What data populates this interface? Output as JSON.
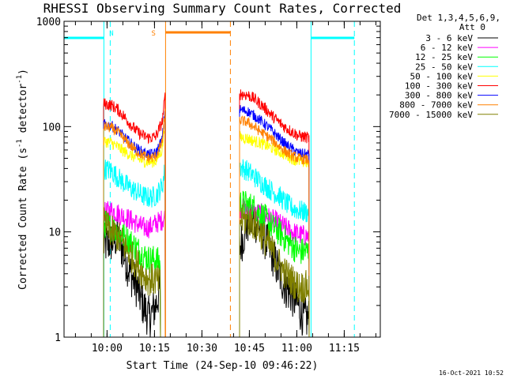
{
  "chart_data": {
    "type": "line",
    "title": "RHESSI Observing Summary Count Rates, Corrected",
    "xlabel": "Start Time (24-Sep-10 09:46:22)",
    "ylabel_parts": [
      "Corrected Count Rate (s",
      "-1",
      " detector",
      "-1",
      ")"
    ],
    "yscale": "log",
    "ylim": [
      1,
      1000
    ],
    "xlim_minutes_after_0946": [
      0,
      100
    ],
    "x_ticks": [
      {
        "label": "10:00",
        "minute": 13.6
      },
      {
        "label": "10:15",
        "minute": 28.6
      },
      {
        "label": "10:30",
        "minute": 43.6
      },
      {
        "label": "10:45",
        "minute": 58.6
      },
      {
        "label": "11:00",
        "minute": 73.6
      },
      {
        "label": "11:15",
        "minute": 88.6
      }
    ],
    "y_ticks": [
      {
        "label": "1",
        "value": 1
      },
      {
        "label": "10",
        "value": 10
      },
      {
        "label": "100",
        "value": 100
      },
      {
        "label": "1000",
        "value": 1000
      }
    ],
    "legend_header": [
      "Det 1,3,4,5,6,9,",
      "Att 0"
    ],
    "legend_position": "right",
    "series": [
      {
        "name": "3 - 6 keV",
        "color": "#000000",
        "seg1": [
          [
            12.5,
            7.5
          ],
          [
            15,
            8
          ],
          [
            17,
            9
          ],
          [
            19,
            6
          ],
          [
            21,
            4
          ],
          [
            23,
            3
          ],
          [
            25,
            2
          ],
          [
            27,
            1.5
          ],
          [
            29,
            2
          ],
          [
            30.5,
            3
          ]
        ],
        "seg2": [
          [
            55.5,
            7
          ],
          [
            58,
            12
          ],
          [
            60,
            13
          ],
          [
            62,
            11
          ],
          [
            64,
            8
          ],
          [
            66,
            6
          ],
          [
            68,
            4
          ],
          [
            70,
            3
          ],
          [
            72,
            2.5
          ],
          [
            74,
            2
          ],
          [
            76,
            1.5
          ],
          [
            77.5,
            1.5
          ]
        ],
        "noise": 0.09
      },
      {
        "name": "6 - 12 keV",
        "color": "#ff00ff",
        "seg1": [
          [
            12.5,
            15
          ],
          [
            15,
            16
          ],
          [
            17,
            15
          ],
          [
            19,
            14
          ],
          [
            21,
            13
          ],
          [
            23,
            12
          ],
          [
            25,
            11
          ],
          [
            27,
            11
          ],
          [
            29,
            12
          ],
          [
            31,
            13
          ],
          [
            32,
            14
          ]
        ],
        "seg2": [
          [
            55.5,
            17
          ],
          [
            58,
            16
          ],
          [
            60,
            15
          ],
          [
            62,
            15
          ],
          [
            64,
            14
          ],
          [
            66,
            13
          ],
          [
            68,
            12
          ],
          [
            70,
            11
          ],
          [
            72,
            10
          ],
          [
            74,
            9.5
          ],
          [
            77.5,
            9
          ]
        ],
        "noise": 0.045
      },
      {
        "name": "12 - 25 keV",
        "color": "#00ff00",
        "seg1": [
          [
            12.5,
            12
          ],
          [
            15,
            11
          ],
          [
            17,
            10
          ],
          [
            19,
            9
          ],
          [
            21,
            8
          ],
          [
            23,
            7
          ],
          [
            25,
            6
          ],
          [
            27,
            5.5
          ],
          [
            29,
            5.5
          ],
          [
            30.5,
            5
          ]
        ],
        "seg2": [
          [
            55.5,
            19
          ],
          [
            58,
            18
          ],
          [
            60,
            17
          ],
          [
            62,
            15
          ],
          [
            64,
            13
          ],
          [
            66,
            11
          ],
          [
            68,
            10
          ],
          [
            70,
            8.5
          ],
          [
            72,
            7.5
          ],
          [
            74,
            6.5
          ],
          [
            77.5,
            6.5
          ]
        ],
        "noise": 0.06
      },
      {
        "name": "25 - 50 keV",
        "color": "#00ffff",
        "seg1": [
          [
            12.5,
            40
          ],
          [
            15,
            38
          ],
          [
            17,
            33
          ],
          [
            19,
            29
          ],
          [
            21,
            26
          ],
          [
            23,
            24
          ],
          [
            25,
            22
          ],
          [
            27,
            21
          ],
          [
            29,
            22
          ],
          [
            31,
            27
          ],
          [
            32,
            40
          ]
        ],
        "seg2": [
          [
            55.5,
            42
          ],
          [
            58,
            38
          ],
          [
            60,
            34
          ],
          [
            62,
            30
          ],
          [
            64,
            27
          ],
          [
            66,
            24
          ],
          [
            68,
            22
          ],
          [
            70,
            19
          ],
          [
            72,
            17
          ],
          [
            74,
            16
          ],
          [
            77.5,
            15
          ]
        ],
        "noise": 0.045
      },
      {
        "name": "50 - 100 keV",
        "color": "#ffff00",
        "seg1": [
          [
            12.5,
            73
          ],
          [
            15,
            70
          ],
          [
            17,
            64
          ],
          [
            19,
            58
          ],
          [
            21,
            54
          ],
          [
            23,
            50
          ],
          [
            25,
            47
          ],
          [
            27,
            46
          ],
          [
            29,
            47
          ],
          [
            31,
            60
          ],
          [
            32,
            120
          ]
        ],
        "seg2": [
          [
            55.5,
            80
          ],
          [
            58,
            77
          ],
          [
            60,
            73
          ],
          [
            62,
            70
          ],
          [
            64,
            66
          ],
          [
            66,
            62
          ],
          [
            68,
            58
          ],
          [
            70,
            54
          ],
          [
            72,
            50
          ],
          [
            74,
            47
          ],
          [
            77.5,
            45
          ]
        ],
        "noise": 0.025
      },
      {
        "name": "100 - 300 keV",
        "color": "#ff0000",
        "seg1": [
          [
            12.5,
            165
          ],
          [
            15,
            160
          ],
          [
            17,
            145
          ],
          [
            19,
            125
          ],
          [
            21,
            105
          ],
          [
            23,
            90
          ],
          [
            25,
            82
          ],
          [
            27,
            78
          ],
          [
            29,
            80
          ],
          [
            31,
            110
          ],
          [
            32,
            200
          ]
        ],
        "seg2": [
          [
            55.5,
            205
          ],
          [
            58,
            200
          ],
          [
            60,
            185
          ],
          [
            62,
            165
          ],
          [
            64,
            145
          ],
          [
            66,
            125
          ],
          [
            68,
            110
          ],
          [
            70,
            98
          ],
          [
            72,
            90
          ],
          [
            74,
            82
          ],
          [
            77.5,
            78
          ]
        ],
        "noise": 0.025
      },
      {
        "name": "300 - 800 keV",
        "color": "#0000ff",
        "seg1": [
          [
            12.5,
            105
          ],
          [
            15,
            102
          ],
          [
            17,
            92
          ],
          [
            19,
            80
          ],
          [
            21,
            70
          ],
          [
            23,
            62
          ],
          [
            25,
            57
          ],
          [
            27,
            54
          ],
          [
            29,
            56
          ],
          [
            31,
            75
          ],
          [
            32,
            150
          ]
        ],
        "seg2": [
          [
            55.5,
            145
          ],
          [
            58,
            140
          ],
          [
            60,
            128
          ],
          [
            62,
            115
          ],
          [
            64,
            102
          ],
          [
            66,
            90
          ],
          [
            68,
            78
          ],
          [
            70,
            68
          ],
          [
            72,
            62
          ],
          [
            74,
            56
          ],
          [
            77.5,
            54
          ]
        ],
        "noise": 0.022
      },
      {
        "name": "800 - 7000 keV",
        "color": "#ff8000",
        "seg1": [
          [
            12.5,
            100
          ],
          [
            15,
            97
          ],
          [
            17,
            88
          ],
          [
            19,
            76
          ],
          [
            21,
            66
          ],
          [
            23,
            58
          ],
          [
            25,
            53
          ],
          [
            27,
            50
          ],
          [
            29,
            52
          ],
          [
            31,
            70
          ],
          [
            32,
            140
          ]
        ],
        "seg2": [
          [
            55.5,
            115
          ],
          [
            58,
            110
          ],
          [
            60,
            100
          ],
          [
            62,
            90
          ],
          [
            64,
            82
          ],
          [
            66,
            74
          ],
          [
            68,
            65
          ],
          [
            70,
            58
          ],
          [
            72,
            53
          ],
          [
            74,
            50
          ],
          [
            77.5,
            48
          ]
        ],
        "noise": 0.022
      },
      {
        "name": "7000 - 15000 keV",
        "color": "#808000",
        "seg1": [
          [
            12.5,
            12
          ],
          [
            15,
            10
          ],
          [
            17,
            9
          ],
          [
            19,
            7.5
          ],
          [
            21,
            6
          ],
          [
            23,
            5
          ],
          [
            25,
            4
          ],
          [
            27,
            3.5
          ],
          [
            29,
            3.5
          ],
          [
            30.5,
            3.2
          ]
        ],
        "seg2": [
          [
            55.5,
            13
          ],
          [
            58,
            13
          ],
          [
            60,
            12
          ],
          [
            62,
            10
          ],
          [
            64,
            8
          ],
          [
            66,
            6.5
          ],
          [
            68,
            5
          ],
          [
            70,
            4
          ],
          [
            72,
            3.5
          ],
          [
            74,
            3
          ],
          [
            77.5,
            3
          ]
        ],
        "noise": 0.07
      }
    ],
    "night_bars": [
      {
        "start": 0,
        "end": 12.6,
        "label": ""
      },
      {
        "start": 78.1,
        "end": 91.8,
        "label": ""
      }
    ],
    "saa_bar": {
      "start": 32.1,
      "end": 52.6
    },
    "bar_labels": [
      {
        "text": "N",
        "minute": 15.0,
        "color": "#00ffff"
      },
      {
        "text": "S",
        "minute": 28.3,
        "color": "#ff8000"
      }
    ],
    "vlines": [
      {
        "minute": 12.6,
        "color": "#00ffff",
        "style": "solid"
      },
      {
        "minute": 14.6,
        "color": "#00ffff",
        "style": "dashed"
      },
      {
        "minute": 32.1,
        "color": "#ff8000",
        "style": "solid"
      },
      {
        "minute": 52.6,
        "color": "#ff8000",
        "style": "dashed"
      },
      {
        "minute": 78.1,
        "color": "#00ffff",
        "style": "solid"
      },
      {
        "minute": 91.8,
        "color": "#00ffff",
        "style": "dashed"
      }
    ],
    "timestamp": "16-Oct-2021 10:52"
  }
}
